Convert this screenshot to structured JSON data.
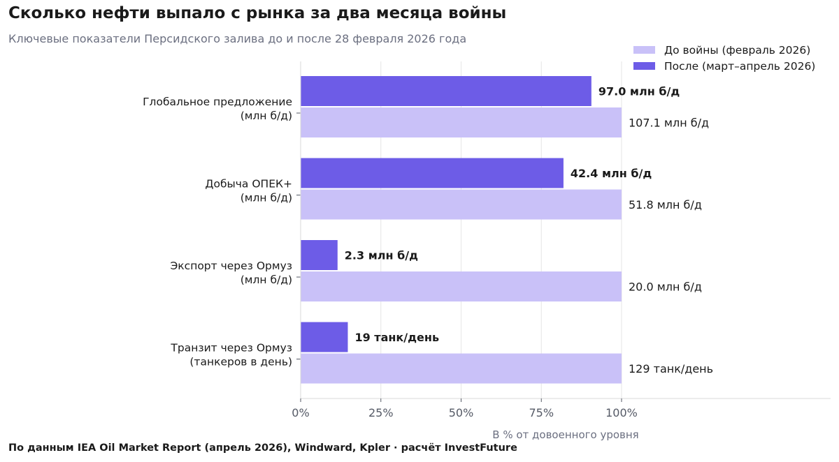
{
  "header": {
    "title": "Сколько нефти выпало с рынка за два месяца войны",
    "subtitle": "Ключевые показатели Персидского залива до и после 28 февраля 2026 года"
  },
  "footer": {
    "source": "По данным IEA Oil Market Report (апрель 2026), Windward, Kpler · расчёт InvestFuture"
  },
  "colors": {
    "before": "#c9c1f8",
    "after": "#6d5ce7"
  },
  "chart_data": {
    "type": "bar",
    "orientation": "horizontal",
    "xlabel": "В % от довоенного уровня",
    "xlim": [
      0,
      100
    ],
    "x_ticks": [
      0,
      25,
      50,
      75,
      100
    ],
    "x_tick_labels": [
      "0%",
      "25%",
      "50%",
      "75%",
      "100%"
    ],
    "grid": "vertical",
    "legend_position": "top-right",
    "categories": [
      {
        "line1": "Глобальное предложение",
        "line2": "(млн б/д)"
      },
      {
        "line1": "Добыча ОПЕК+",
        "line2": "(млн б/д)"
      },
      {
        "line1": "Экспорт через Ормуз",
        "line2": "(млн б/д)"
      },
      {
        "line1": "Транзит через Ормуз",
        "line2": "(танкеров в день)"
      }
    ],
    "series": [
      {
        "name": "До войны (февраль 2026)",
        "key": "before",
        "values": [
          100,
          100,
          100,
          100
        ],
        "labels": [
          "107.1 млн б/д",
          "51.8 млн б/д",
          "20.0 млн б/д",
          "129 танк/день"
        ]
      },
      {
        "name": "После (март–апрель 2026)",
        "key": "after",
        "values": [
          90.6,
          81.9,
          11.5,
          14.7
        ],
        "labels": [
          "97.0 млн б/д",
          "42.4 млн б/д",
          "2.3 млн б/д",
          "19 танк/день"
        ]
      }
    ]
  }
}
